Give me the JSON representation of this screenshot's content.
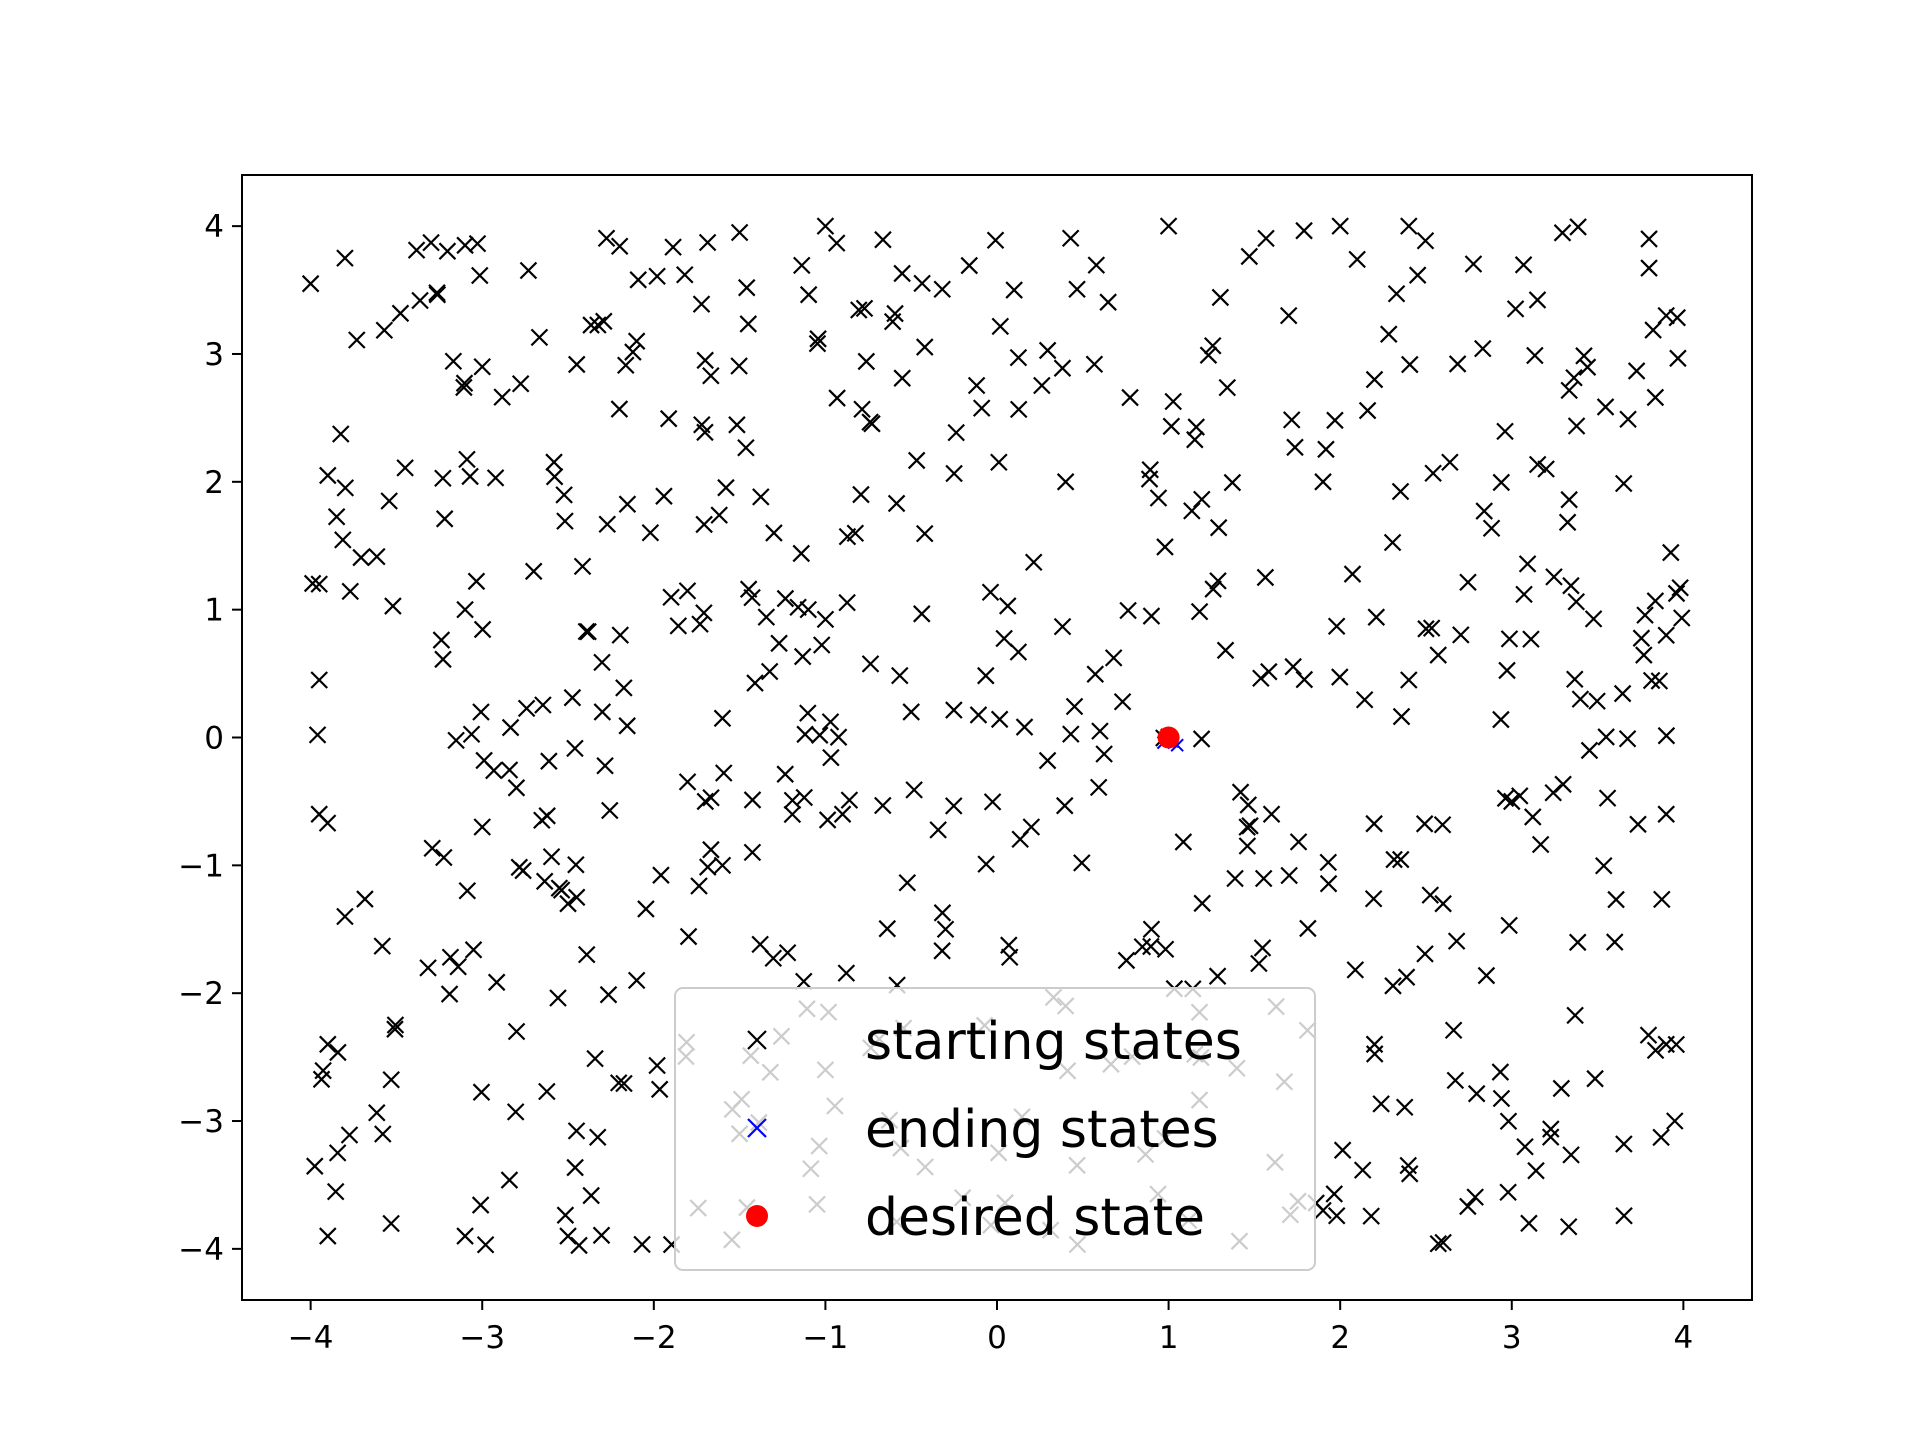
{
  "chart_data": {
    "type": "scatter",
    "title": "",
    "xlabel": "",
    "ylabel": "",
    "xlim": [
      -4.4,
      4.4
    ],
    "ylim": [
      -4.4,
      4.4
    ],
    "xticks": [
      -4,
      -3,
      -2,
      -1,
      0,
      1,
      2,
      3,
      4
    ],
    "yticks": [
      -4,
      -3,
      -2,
      -1,
      0,
      1,
      2,
      3,
      4
    ],
    "xtick_labels": [
      "−4",
      "−3",
      "−2",
      "−1",
      "0",
      "1",
      "2",
      "3",
      "4"
    ],
    "ytick_labels": [
      "−4",
      "−3",
      "−2",
      "−1",
      "0",
      "1",
      "2",
      "3",
      "4"
    ],
    "grid": false,
    "legend_position": "lower center",
    "series": [
      {
        "name": "starting states",
        "marker": "x",
        "color": "#000000",
        "sample_count": 600,
        "distribution": "uniform",
        "range": [
          -4,
          4
        ],
        "sample_points": [
          [
            -4.0,
            3.55
          ],
          [
            -3.8,
            3.75
          ],
          [
            -3.1,
            3.85
          ],
          [
            -1.5,
            3.95
          ],
          [
            -1.0,
            4.0
          ],
          [
            1.0,
            4.0
          ],
          [
            2.0,
            4.0
          ],
          [
            2.4,
            4.0
          ],
          [
            3.8,
            3.9
          ],
          [
            -3.0,
            2.9
          ],
          [
            -2.1,
            3.1
          ],
          [
            0.1,
            3.5
          ],
          [
            1.7,
            3.3
          ],
          [
            2.2,
            2.8
          ],
          [
            3.9,
            3.3
          ],
          [
            -3.9,
            2.05
          ],
          [
            -2.7,
            1.3
          ],
          [
            -1.3,
            1.6
          ],
          [
            0.4,
            2.0
          ],
          [
            1.9,
            2.0
          ],
          [
            3.2,
            2.1
          ],
          [
            -3.95,
            1.2
          ],
          [
            -3.1,
            1.0
          ],
          [
            -1.1,
            1.0
          ],
          [
            0.9,
            0.95
          ],
          [
            2.5,
            0.85
          ],
          [
            3.9,
            0.8
          ],
          [
            -3.95,
            0.45
          ],
          [
            -2.3,
            0.2
          ],
          [
            -1.6,
            0.15
          ],
          [
            -0.5,
            0.2
          ],
          [
            0.6,
            0.05
          ],
          [
            2.4,
            0.45
          ],
          [
            3.4,
            0.3
          ],
          [
            -3.95,
            -0.6
          ],
          [
            -3.0,
            -0.7
          ],
          [
            -1.7,
            -0.5
          ],
          [
            -0.9,
            -0.6
          ],
          [
            0.2,
            -0.7
          ],
          [
            1.6,
            -0.6
          ],
          [
            3.0,
            -0.5
          ],
          [
            3.9,
            -0.6
          ],
          [
            -3.8,
            -1.4
          ],
          [
            -2.5,
            -1.3
          ],
          [
            -1.6,
            -1.0
          ],
          [
            -0.3,
            -1.5
          ],
          [
            0.9,
            -1.5
          ],
          [
            2.6,
            -1.3
          ],
          [
            3.6,
            -1.6
          ],
          [
            -3.9,
            -2.4
          ],
          [
            -2.8,
            -2.3
          ],
          [
            -2.1,
            -1.9
          ],
          [
            -1.0,
            -2.6
          ],
          [
            0.4,
            -2.1
          ],
          [
            2.2,
            -2.4
          ],
          [
            3.9,
            -2.4
          ],
          [
            -3.9,
            -3.9
          ],
          [
            -3.1,
            -3.9
          ],
          [
            -2.5,
            -3.9
          ],
          [
            -1.5,
            -3.1
          ],
          [
            -0.2,
            -3.6
          ],
          [
            1.9,
            -3.7
          ],
          [
            2.6,
            -3.95
          ],
          [
            3.1,
            -3.8
          ],
          [
            3.95,
            -3.0
          ]
        ]
      },
      {
        "name": "ending states",
        "marker": "x",
        "color": "#0000ff",
        "points": [
          [
            0.97,
            -0.04
          ],
          [
            1.05,
            -0.06
          ],
          [
            0.99,
            0.02
          ],
          [
            1.02,
            -0.03
          ]
        ]
      },
      {
        "name": "desired state",
        "marker": "o",
        "color": "#ff0000",
        "points": [
          [
            1.0,
            0.0
          ]
        ]
      }
    ]
  }
}
